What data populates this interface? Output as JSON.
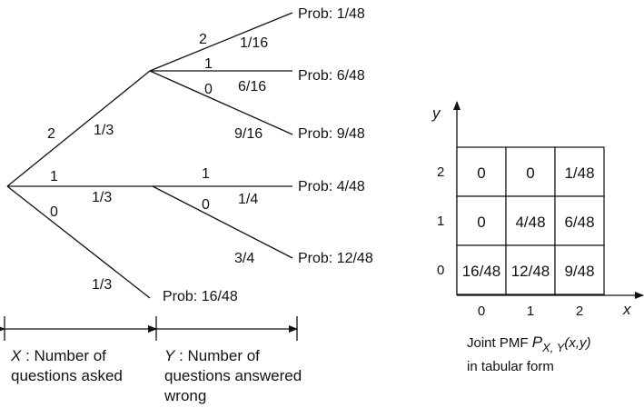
{
  "tree": {
    "first_branches": {
      "two": {
        "value": "2",
        "prob": "1/3"
      },
      "one": {
        "value": "1",
        "prob": "1/3"
      },
      "zero": {
        "value": "0",
        "prob": "1/3"
      }
    },
    "node_two_branches": {
      "two": {
        "value": "2",
        "prob": "1/16",
        "outcome": "Prob: 1/48"
      },
      "one": {
        "value": "1",
        "prob": "6/16",
        "outcome": "Prob: 6/48"
      },
      "zero": {
        "value": "0",
        "prob": "9/16",
        "outcome": "Prob: 9/48"
      }
    },
    "node_one_branches": {
      "one": {
        "value": "1",
        "prob": "1/4",
        "outcome": "Prob: 4/48"
      },
      "zero": {
        "value": "0",
        "prob": "3/4",
        "outcome": "Prob: 12/48"
      }
    },
    "node_zero_outcome": "Prob: 16/48"
  },
  "annotations": {
    "x_var": "X",
    "x_desc_line1": " : Number of",
    "x_desc_line2": "questions asked",
    "y_var": "Y",
    "y_desc_line1": " : Number of",
    "y_desc_line2": "questions answered",
    "y_desc_line3": "wrong"
  },
  "table": {
    "y_axis_label": "y",
    "x_axis_label": "x",
    "y_ticks": [
      "2",
      "1",
      "0"
    ],
    "x_ticks": [
      "0",
      "1",
      "2"
    ],
    "cells": [
      [
        "0",
        "0",
        "1/48"
      ],
      [
        "0",
        "4/48",
        "6/48"
      ],
      [
        "16/48",
        "12/48",
        "9/48"
      ]
    ],
    "caption_prefix": "Joint PMF ",
    "caption_p": "P",
    "caption_sub": "X, Y",
    "caption_args": "(x,y)",
    "caption_line2": "in tabular form"
  }
}
